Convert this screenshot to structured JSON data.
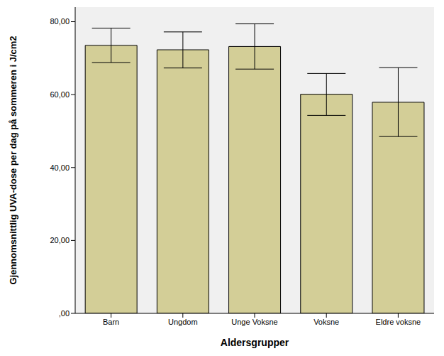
{
  "chart_data": {
    "type": "bar",
    "x_label": "Aldersgrupper",
    "y_label": "Gjennomsnittlig UVA-dose per dag på sommeren i J/cm2",
    "categories": [
      "Barn",
      "Ungdom",
      "Unge Voksne",
      "Voksne",
      "Eldre voksne"
    ],
    "values": [
      73.5,
      72.3,
      73.2,
      60.1,
      57.9
    ],
    "error_low": [
      68.8,
      67.3,
      67.0,
      54.3,
      48.5
    ],
    "error_high": [
      78.2,
      77.2,
      79.4,
      65.8,
      67.4
    ],
    "color": "#D3CE97",
    "ylim": [
      0,
      84
    ],
    "yticks": [
      {
        "value": 0,
        "label": ",00"
      },
      {
        "value": 20,
        "label": "20,00"
      },
      {
        "value": 40,
        "label": "40,00"
      },
      {
        "value": 60,
        "label": "60,00"
      },
      {
        "value": 80,
        "label": "80,00"
      }
    ],
    "grid": false
  }
}
